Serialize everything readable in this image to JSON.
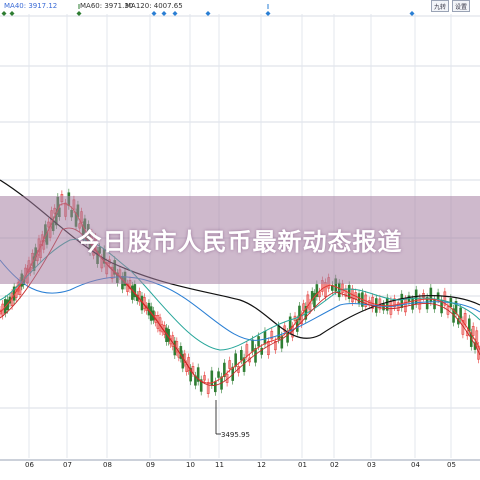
{
  "legend": {
    "items": [
      {
        "text": "MA40: 3917.12",
        "color": "#3b6bd6"
      },
      {
        "text": "MA60: 3971.30",
        "color": "#333333"
      },
      {
        "text": "MA120: 4007.65",
        "color": "#333333"
      }
    ]
  },
  "toolbar": {
    "btn1": "九转",
    "btn2": "设置"
  },
  "banner": {
    "title": "今日股市人民币最新动态报道"
  },
  "annotations": {
    "low_label": "3495.95"
  },
  "chart_data": {
    "type": "line",
    "title": "",
    "xlabel": "",
    "ylabel": "",
    "x_ticks": [
      "06",
      "07",
      "08",
      "09",
      "10",
      "11",
      "12",
      "01",
      "02",
      "03",
      "04",
      "05"
    ],
    "annotations": [
      "3495.95"
    ],
    "grid": true,
    "series": [
      {
        "name": "MA40",
        "color": "#3b6bd6"
      },
      {
        "name": "MA60",
        "color": "#333333"
      },
      {
        "name": "MA120",
        "color": "#333333"
      }
    ]
  }
}
